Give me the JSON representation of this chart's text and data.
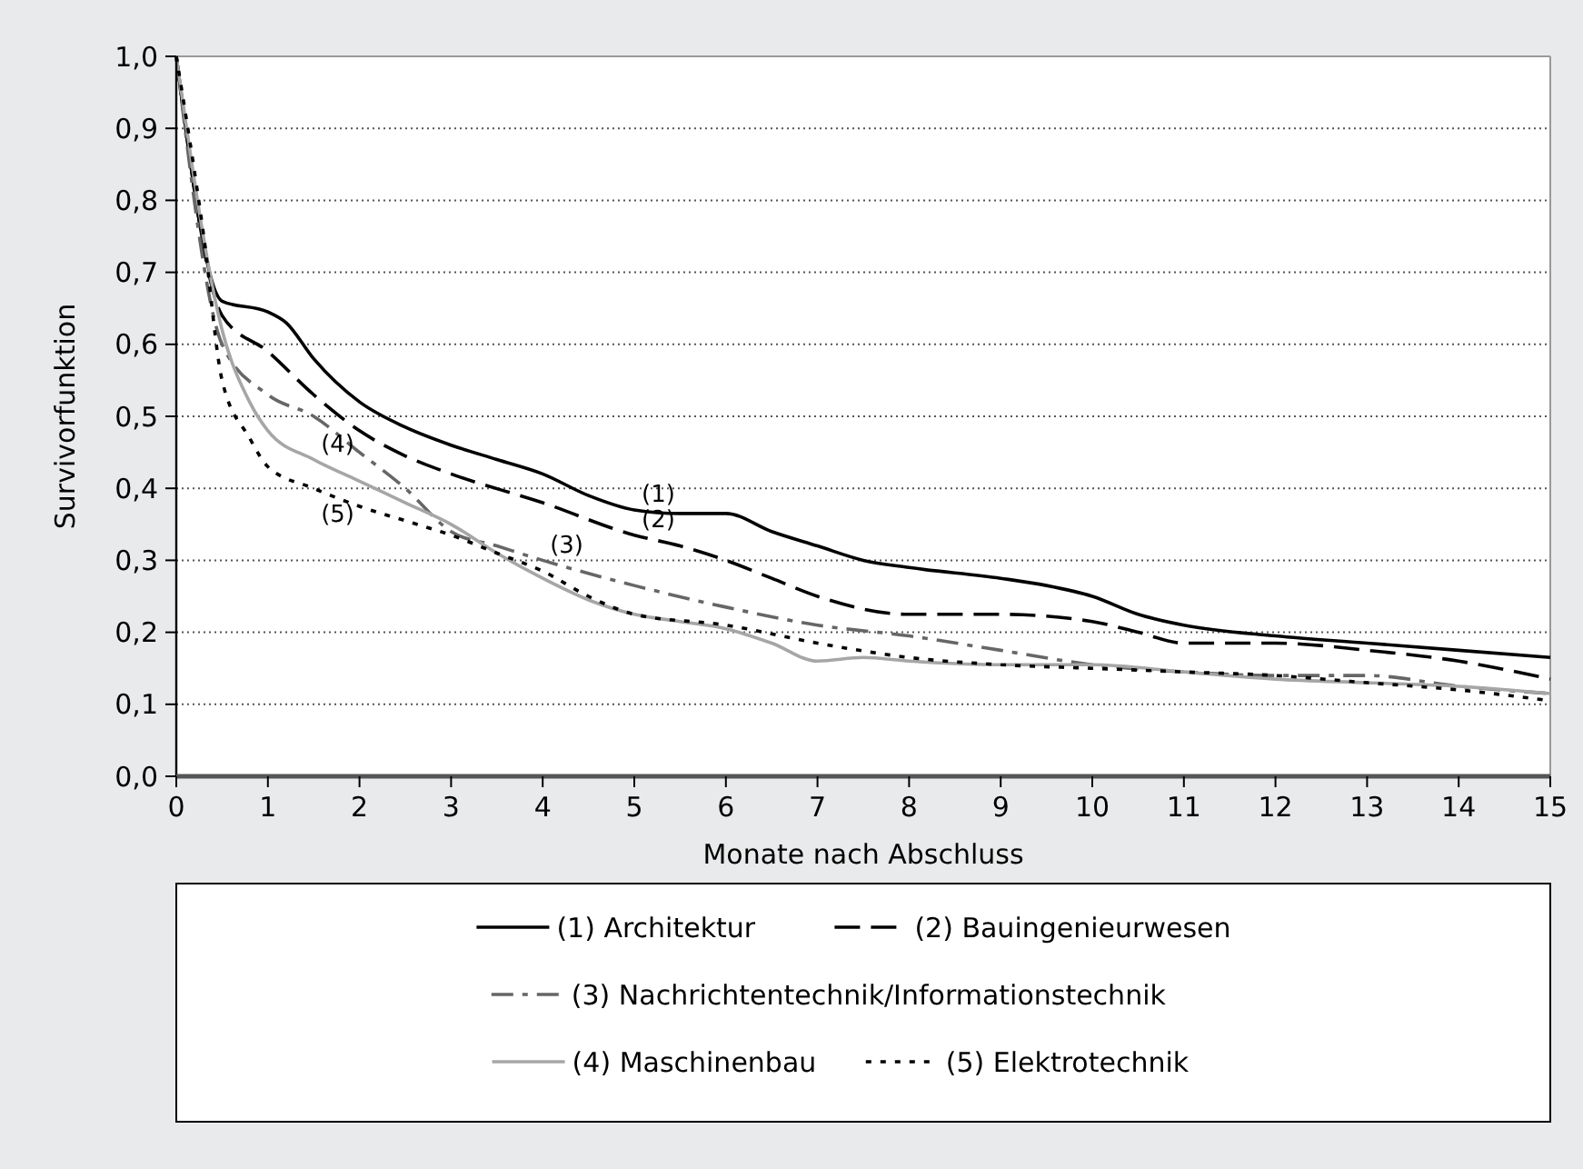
{
  "chart_data": {
    "type": "line",
    "xlabel": "Monate nach Abschluss",
    "ylabel": "Survivorfunktion",
    "xlim": [
      0,
      15
    ],
    "xticks": [
      0,
      1,
      2,
      3,
      4,
      5,
      6,
      7,
      8,
      9,
      10,
      11,
      12,
      13,
      14,
      15
    ],
    "ylim": [
      0,
      1
    ],
    "yticks": [
      {
        "value": 0,
        "label": "0,0"
      },
      {
        "value": 0.1,
        "label": "0,1"
      },
      {
        "value": 0.2,
        "label": "0,2"
      },
      {
        "value": 0.3,
        "label": "0,3"
      },
      {
        "value": 0.4,
        "label": "0,4"
      },
      {
        "value": 0.5,
        "label": "0,5"
      },
      {
        "value": 0.6,
        "label": "0,6"
      },
      {
        "value": 0.7,
        "label": "0,7"
      },
      {
        "value": 0.8,
        "label": "0,8"
      },
      {
        "value": 0.9,
        "label": "0,9"
      },
      {
        "value": 1,
        "label": "1,0"
      }
    ],
    "grid": "y",
    "legend": "bottom",
    "marker": "none",
    "series": [
      {
        "name": "(1) Architektur",
        "color": "#000000",
        "line_style": "solid",
        "x": [
          0,
          0.5,
          1,
          1.2,
          1.5,
          2,
          2.5,
          3,
          3.5,
          4,
          4.5,
          5,
          5.5,
          6,
          6.5,
          7,
          7.5,
          8,
          9,
          9.5,
          10,
          10.5,
          11,
          12,
          13,
          14,
          15
        ],
        "values": [
          1,
          0.66,
          0.645,
          0.63,
          0.58,
          0.52,
          0.485,
          0.46,
          0.44,
          0.42,
          0.39,
          0.37,
          0.365,
          0.365,
          0.34,
          0.32,
          0.3,
          0.29,
          0.275,
          0.265,
          0.25,
          0.225,
          0.21,
          0.195,
          0.185,
          0.175,
          0.165
        ]
      },
      {
        "name": "(2) Bauingenieurwesen",
        "color": "#000000",
        "line_style": "dashed",
        "x": [
          0,
          0.5,
          1,
          1.5,
          2,
          2.5,
          3,
          4,
          5,
          5.5,
          6,
          6.5,
          7,
          8,
          9,
          10,
          10.5,
          11,
          12,
          13,
          14,
          15
        ],
        "values": [
          1,
          0.64,
          0.59,
          0.53,
          0.48,
          0.445,
          0.42,
          0.38,
          0.335,
          0.32,
          0.3,
          0.275,
          0.25,
          0.225,
          0.225,
          0.215,
          0.2,
          0.185,
          0.185,
          0.175,
          0.16,
          0.135
        ]
      },
      {
        "name": "(3) Nachrichtentechnik/Informationstechnik",
        "color": "#666666",
        "line_style": "dashed",
        "x": [
          0,
          0.5,
          1,
          1.5,
          2,
          2.5,
          3,
          3.5,
          4,
          5,
          6,
          7,
          8,
          9,
          10,
          11,
          12,
          13,
          14,
          15
        ],
        "values": [
          1,
          0.6,
          0.53,
          0.5,
          0.45,
          0.4,
          0.34,
          0.32,
          0.3,
          0.265,
          0.235,
          0.21,
          0.195,
          0.175,
          0.155,
          0.145,
          0.14,
          0.14,
          0.125,
          0.115
        ]
      },
      {
        "name": "(4) Maschinenbau",
        "color": "#a6a6a6",
        "line_style": "solid",
        "x": [
          0,
          0.5,
          0.8,
          1,
          1.5,
          2,
          2.5,
          3,
          3.5,
          4,
          4.5,
          5,
          5.5,
          6,
          6.5,
          7,
          7.5,
          8,
          9,
          10,
          11,
          12,
          13,
          14,
          15
        ],
        "values": [
          1,
          0.62,
          0.52,
          0.48,
          0.44,
          0.41,
          0.38,
          0.35,
          0.31,
          0.275,
          0.245,
          0.225,
          0.215,
          0.205,
          0.185,
          0.16,
          0.165,
          0.16,
          0.155,
          0.155,
          0.145,
          0.135,
          0.13,
          0.125,
          0.115
        ]
      },
      {
        "name": "(5) Elektrotechnik",
        "color": "#000000",
        "line_style": "dotted",
        "x": [
          0,
          0.3,
          0.5,
          0.8,
          1,
          1.5,
          2,
          2.5,
          3,
          3.5,
          4,
          4.5,
          5,
          6,
          7,
          8,
          9,
          10,
          11,
          12,
          13,
          14,
          15
        ],
        "values": [
          1,
          0.75,
          0.55,
          0.47,
          0.43,
          0.4,
          0.375,
          0.355,
          0.335,
          0.31,
          0.285,
          0.25,
          0.225,
          0.21,
          0.185,
          0.165,
          0.155,
          0.15,
          0.145,
          0.14,
          0.13,
          0.12,
          0.105
        ]
      }
    ],
    "annotations": [
      {
        "text": "(1)",
        "x": 5,
        "y": 0.37
      },
      {
        "text": "(2)",
        "x": 5,
        "y": 0.335
      },
      {
        "text": "(3)",
        "x": 4,
        "y": 0.3
      },
      {
        "text": "(4)",
        "x": 1.5,
        "y": 0.44
      },
      {
        "text": "(5)",
        "x": 1.5,
        "y": 0.4
      }
    ]
  }
}
